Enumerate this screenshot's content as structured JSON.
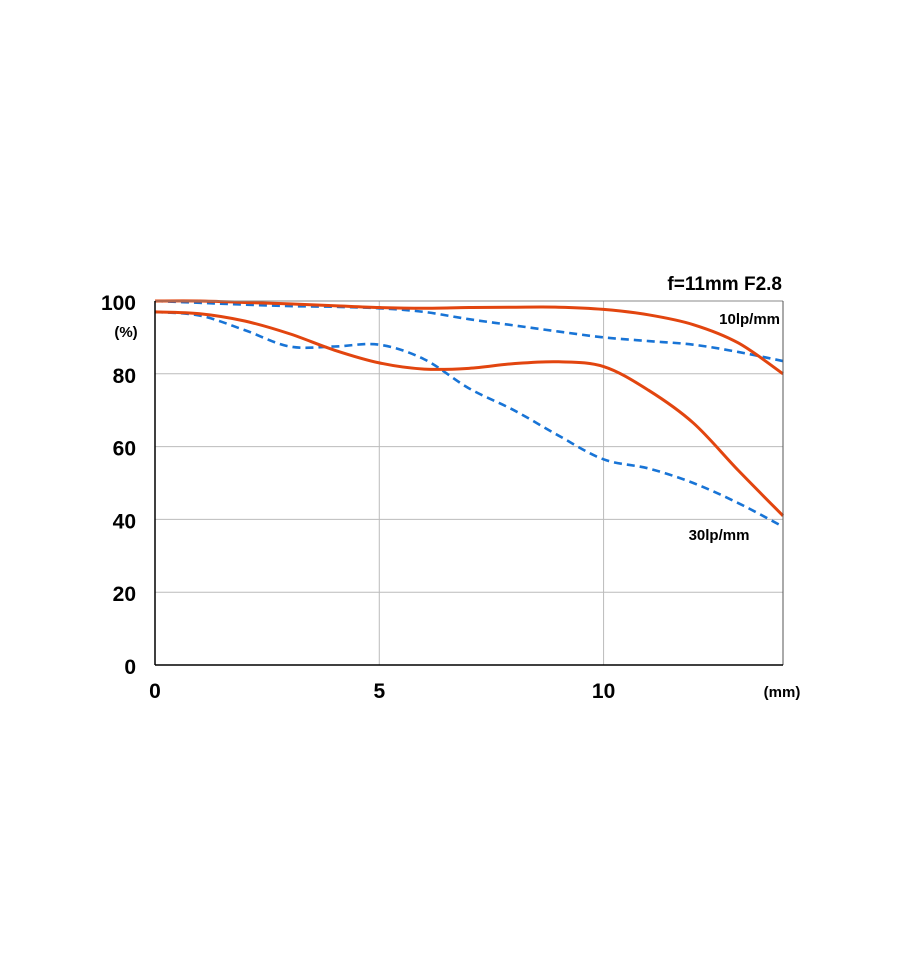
{
  "chart_data": {
    "type": "line",
    "title": "f=11mm F2.8",
    "ylabel": "(%)",
    "xlabel": "(mm)",
    "xlim": [
      0,
      14
    ],
    "ylim": [
      0,
      100
    ],
    "x_ticks": [
      0,
      5,
      10
    ],
    "y_ticks": [
      0,
      20,
      40,
      60,
      80,
      100
    ],
    "grid": true,
    "annotations": [
      {
        "text": "10lp/mm",
        "x": 14,
        "y": 95
      },
      {
        "text": "30lp/mm",
        "x": 13.3,
        "y": 35
      }
    ],
    "colors": {
      "solid": "#e2450f",
      "dashed": "#1874d6",
      "grid": "#bbbbbb",
      "axis": "#000000"
    },
    "series": [
      {
        "style": "solid",
        "x": [
          0,
          1,
          2,
          3,
          4,
          5,
          6,
          7,
          8,
          9,
          10,
          11,
          12,
          13,
          14
        ],
        "y": [
          100,
          100,
          99.6,
          99.2,
          98.7,
          98.2,
          98,
          98.2,
          98.3,
          98.3,
          97.7,
          96.2,
          93.5,
          88.5,
          80
        ]
      },
      {
        "style": "dashed",
        "x": [
          0,
          1,
          2,
          3,
          4,
          5,
          6,
          7,
          8,
          9,
          10,
          11,
          12,
          13,
          14
        ],
        "y": [
          100,
          99.5,
          99,
          98.6,
          98.4,
          98,
          97,
          95,
          93.3,
          91.6,
          90,
          89,
          88,
          86,
          83.5
        ]
      },
      {
        "style": "solid",
        "x": [
          0,
          1,
          2,
          3,
          4,
          5,
          6,
          7,
          8,
          9,
          10,
          11,
          12,
          13,
          14
        ],
        "y": [
          97,
          96.5,
          94.5,
          91,
          86.5,
          83,
          81.3,
          81.5,
          82.8,
          83.3,
          82,
          75.5,
          66.5,
          53.5,
          41
        ]
      },
      {
        "style": "dashed",
        "x": [
          0,
          1,
          2,
          3,
          4,
          5,
          6,
          7,
          8,
          9,
          10,
          11,
          12,
          13,
          14
        ],
        "y": [
          97,
          96,
          92,
          87.5,
          87.5,
          88,
          84,
          76,
          70,
          63,
          56.5,
          54,
          50,
          44.5,
          38
        ]
      }
    ]
  }
}
